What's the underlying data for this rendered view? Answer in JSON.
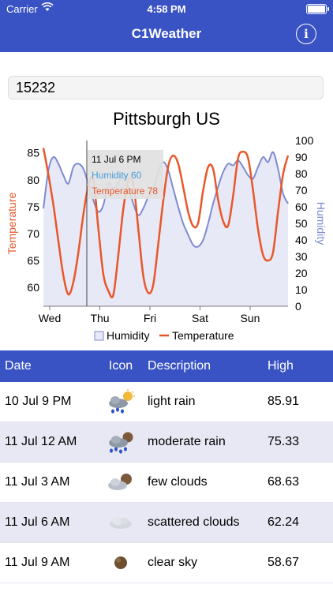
{
  "status_bar": {
    "carrier": "Carrier",
    "time": "4:58 PM"
  },
  "app": {
    "title": "C1Weather",
    "info_label": "i"
  },
  "search": {
    "value": "15232"
  },
  "chart_data": {
    "type": "line",
    "title": "Pittsburgh US",
    "x_labels": [
      "Wed",
      "Thu",
      "Fri",
      "Sat",
      "Sun"
    ],
    "y_left": {
      "label": "Temperature",
      "ticks": [
        60,
        65,
        70,
        75,
        80,
        85
      ],
      "range": [
        56.5,
        87.3
      ]
    },
    "y_right": {
      "label": "Humidity",
      "ticks": [
        0,
        10,
        20,
        30,
        40,
        50,
        60,
        70,
        80,
        90,
        100
      ],
      "range": [
        0,
        100
      ]
    },
    "tooltip": {
      "time": "11 Jul 6 PM",
      "humidity_text": "Humidity 60",
      "temperature_text": "Temperature 78"
    },
    "legend": [
      "Humidity",
      "Temperature"
    ],
    "colors": {
      "humidity_line": "#7e8bd0",
      "humidity_fill": "#e8e9f6",
      "temperature": "#e8572a",
      "tooltip_humidity": "#4a9ad6",
      "tooltip_temperature": "#e8572a"
    },
    "series": [
      {
        "name": "Humidity",
        "axis": "right",
        "values": [
          59,
          82,
          90,
          86,
          79,
          74,
          84,
          86,
          83,
          74,
          64,
          57,
          61,
          74,
          71,
          74,
          80,
          72,
          62,
          55,
          59,
          66,
          71,
          81,
          87,
          82,
          71,
          60,
          50,
          43,
          37,
          36,
          40,
          50,
          62,
          72,
          81,
          86,
          85,
          88,
          84,
          79,
          77,
          84,
          90,
          87,
          93,
          83,
          68,
          62
        ]
      },
      {
        "name": "Temperature",
        "axis": "left",
        "values": [
          85.9,
          81,
          75.3,
          68.6,
          62.2,
          58.7,
          61,
          66.5,
          73.5,
          78.8,
          80,
          71,
          62.5,
          59.4,
          58.6,
          66,
          74.5,
          79.8,
          79.2,
          71,
          62.2,
          59,
          60.5,
          68,
          76,
          82.5,
          84.5,
          83,
          78.7,
          74,
          71.4,
          72,
          78,
          82.4,
          82,
          76.3,
          72.3,
          71.5,
          77,
          84,
          85.2,
          84,
          78,
          70.8,
          66,
          65,
          66.5,
          74,
          81,
          84.5
        ]
      }
    ]
  },
  "table": {
    "headers": {
      "date": "Date",
      "icon": "Icon",
      "description": "Description",
      "high": "High"
    },
    "rows": [
      {
        "date": "10 Jul 9 PM",
        "icon": "light-rain-icon",
        "description": "light rain",
        "high": "85.91"
      },
      {
        "date": "11 Jul 12 AM",
        "icon": "moderate-rain-icon",
        "description": "moderate rain",
        "high": "75.33"
      },
      {
        "date": "11 Jul 3 AM",
        "icon": "few-clouds-icon",
        "description": "few clouds",
        "high": "68.63"
      },
      {
        "date": "11 Jul 6 AM",
        "icon": "scattered-clouds-icon",
        "description": "scattered clouds",
        "high": "62.24"
      },
      {
        "date": "11 Jul 9 AM",
        "icon": "clear-sky-icon",
        "description": "clear sky",
        "high": "58.67"
      }
    ]
  }
}
